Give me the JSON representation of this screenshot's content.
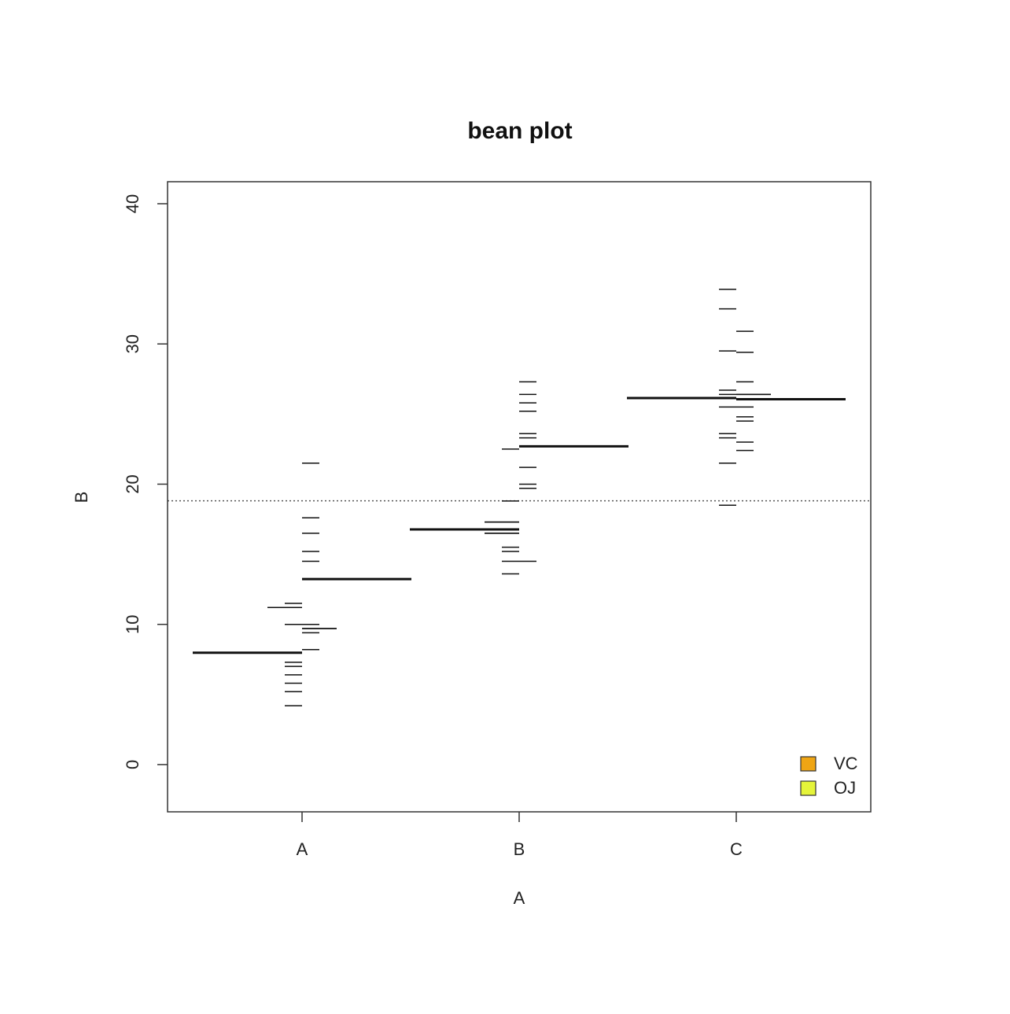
{
  "chart_data": {
    "type": "bean",
    "title": "bean plot",
    "x_label": "A",
    "y_label": "B",
    "categories": [
      "A",
      "B",
      "C"
    ],
    "series": [
      {
        "name": "VC",
        "color": "#efa514",
        "values": [
          [
            4.2,
            11.5,
            7.3,
            5.8,
            6.4,
            10,
            11.2,
            11.2,
            5.2,
            7
          ],
          [
            16.5,
            16.5,
            15.2,
            17.3,
            22.5,
            17.3,
            13.6,
            14.5,
            18.8,
            15.5
          ],
          [
            23.6,
            18.5,
            33.9,
            25.5,
            26.4,
            32.5,
            26.7,
            21.5,
            23.3,
            29.5
          ]
        ],
        "means": [
          7.98,
          16.77,
          26.14
        ]
      },
      {
        "name": "OJ",
        "color": "#e5f43a",
        "values": [
          [
            15.2,
            21.5,
            17.6,
            9.7,
            14.5,
            10,
            8.2,
            9.4,
            16.5,
            9.7
          ],
          [
            19.7,
            23.3,
            23.6,
            26.4,
            20,
            25.2,
            25.8,
            21.2,
            14.5,
            27.3
          ],
          [
            25.5,
            26.4,
            22.4,
            24.5,
            24.8,
            30.9,
            26.4,
            27.3,
            29.4,
            23
          ]
        ],
        "means": [
          13.23,
          22.7,
          26.06
        ]
      }
    ],
    "overall_mean": 18.81,
    "ylim": [
      -3.37,
      41.57
    ],
    "yticks": [
      0,
      10,
      20,
      30,
      40
    ],
    "legend": "bottomright"
  }
}
